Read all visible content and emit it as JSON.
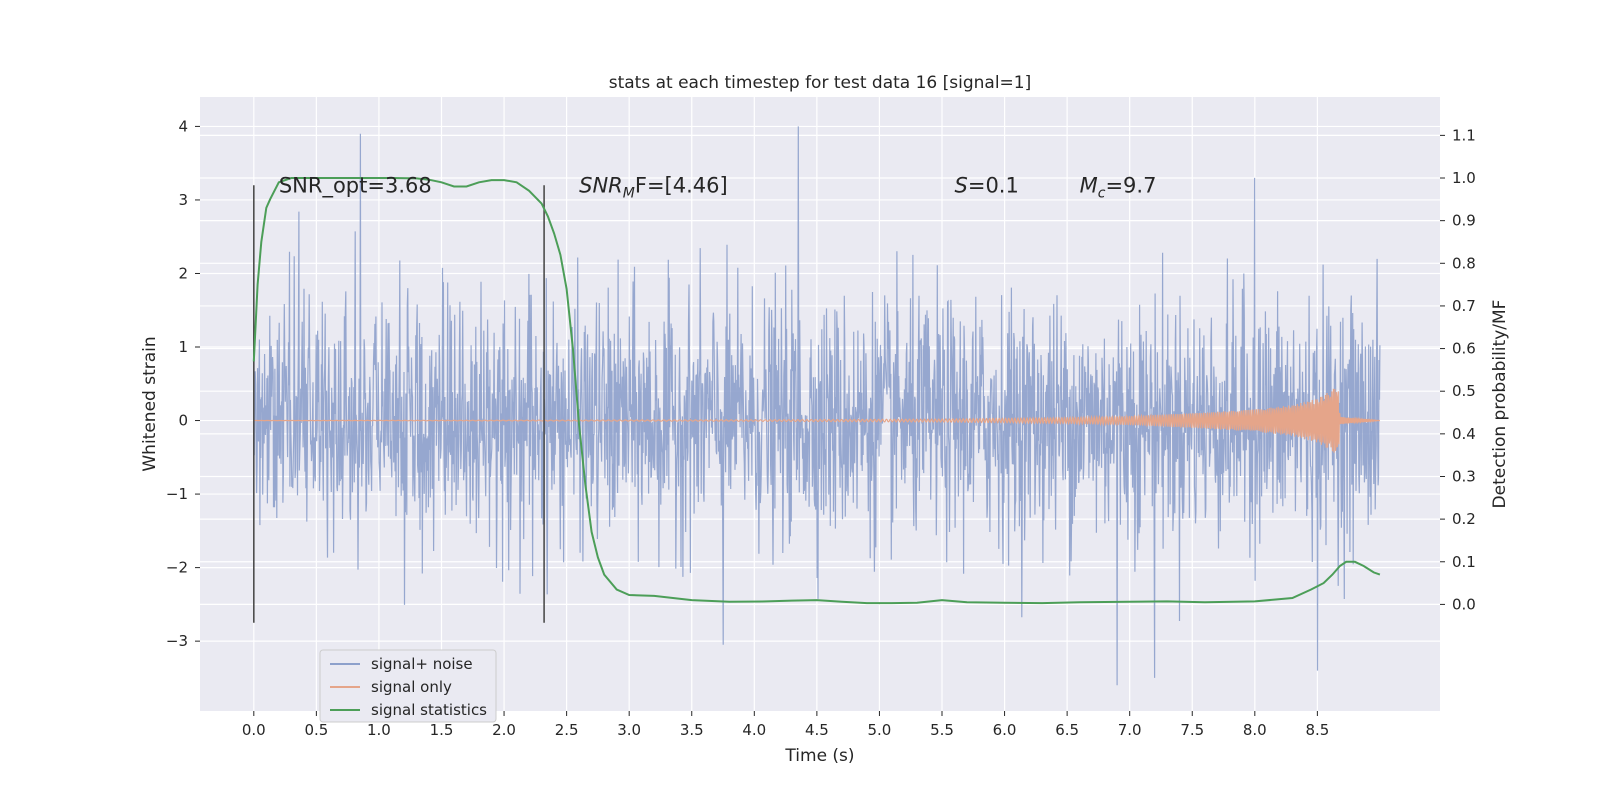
{
  "chart_data": {
    "type": "line",
    "title": "stats at each timestep for test data 16 [signal=1]",
    "xlabel": "Time (s)",
    "ylabel": "Whitened strain",
    "y2label": "Detection probability/MF",
    "xlim": [
      -0.43,
      9.48
    ],
    "ylim": [
      -3.95,
      4.4
    ],
    "y2lim": [
      -0.25,
      1.19
    ],
    "xticks": [
      0.0,
      0.5,
      1.0,
      1.5,
      2.0,
      2.5,
      3.0,
      3.5,
      4.0,
      4.5,
      5.0,
      5.5,
      6.0,
      6.5,
      7.0,
      7.5,
      8.0,
      8.5
    ],
    "xtick_labels": [
      "0.0",
      "0.5",
      "1.0",
      "1.5",
      "2.0",
      "2.5",
      "3.0",
      "3.5",
      "4.0",
      "4.5",
      "5.0",
      "5.5",
      "6.0",
      "6.5",
      "7.0",
      "7.5",
      "8.0",
      "8.5"
    ],
    "yticks": [
      -3,
      -2,
      -1,
      0,
      1,
      2,
      3,
      4
    ],
    "ytick_labels": [
      "−3",
      "−2",
      "−1",
      "0",
      "1",
      "2",
      "3",
      "4"
    ],
    "y2ticks": [
      0.0,
      0.1,
      0.2,
      0.3,
      0.4,
      0.5,
      0.6,
      0.7,
      0.8,
      0.9,
      1.0,
      1.1
    ],
    "y2tick_labels": [
      "0.0",
      "0.1",
      "0.2",
      "0.3",
      "0.4",
      "0.5",
      "0.6",
      "0.7",
      "0.8",
      "0.9",
      "1.0",
      "1.1"
    ],
    "grid": true,
    "legend_position": "lower-left",
    "series": [
      {
        "name": "signal+ noise",
        "color": "#8da0cb",
        "axis": "left",
        "x_range": [
          0.0,
          9.0
        ],
        "typical_amplitude": 1.3,
        "peak_range": [
          -3.5,
          3.95
        ],
        "notable_peaks": [
          {
            "x": 0.85,
            "y": 3.9
          },
          {
            "x": 4.35,
            "y": 4.0
          },
          {
            "x": 8.0,
            "y": 3.3
          },
          {
            "x": 6.9,
            "y": -3.6
          },
          {
            "x": 7.2,
            "y": -3.5
          },
          {
            "x": 8.5,
            "y": -3.4
          },
          {
            "x": 3.75,
            "y": -3.05
          }
        ]
      },
      {
        "name": "signal only",
        "color": "#e5a58a",
        "axis": "left",
        "envelope": [
          [
            0.0,
            0.0
          ],
          [
            4.0,
            0.01
          ],
          [
            5.5,
            0.02
          ],
          [
            6.5,
            0.04
          ],
          [
            7.0,
            0.06
          ],
          [
            7.5,
            0.1
          ],
          [
            8.0,
            0.15
          ],
          [
            8.3,
            0.21
          ],
          [
            8.5,
            0.3
          ],
          [
            8.62,
            0.42
          ],
          [
            8.67,
            0.5
          ],
          [
            8.68,
            0.05
          ],
          [
            9.0,
            0.0
          ]
        ]
      },
      {
        "name": "signal statistics",
        "color": "#4c9e58",
        "axis": "right",
        "x": [
          0.0,
          0.03,
          0.06,
          0.1,
          0.13,
          0.2,
          0.3,
          0.5,
          0.7,
          0.9,
          1.1,
          1.3,
          1.4,
          1.5,
          1.6,
          1.7,
          1.8,
          1.9,
          2.0,
          2.1,
          2.2,
          2.3,
          2.35,
          2.4,
          2.45,
          2.5,
          2.55,
          2.6,
          2.65,
          2.7,
          2.75,
          2.8,
          2.9,
          3.0,
          3.2,
          3.5,
          3.8,
          4.1,
          4.3,
          4.5,
          4.7,
          4.9,
          5.1,
          5.3,
          5.5,
          5.7,
          6.0,
          6.3,
          6.6,
          7.0,
          7.3,
          7.6,
          8.0,
          8.3,
          8.45,
          8.55,
          8.62,
          8.68,
          8.73,
          8.8,
          8.87,
          8.95,
          9.0
        ],
        "y": [
          0.57,
          0.75,
          0.85,
          0.93,
          0.95,
          0.99,
          1.0,
          1.0,
          1.0,
          1.0,
          1.0,
          0.999,
          0.996,
          0.99,
          0.98,
          0.98,
          0.99,
          0.995,
          0.995,
          0.99,
          0.97,
          0.94,
          0.91,
          0.87,
          0.82,
          0.74,
          0.6,
          0.42,
          0.28,
          0.17,
          0.11,
          0.07,
          0.035,
          0.022,
          0.02,
          0.01,
          0.006,
          0.007,
          0.009,
          0.01,
          0.006,
          0.003,
          0.003,
          0.004,
          0.01,
          0.005,
          0.004,
          0.003,
          0.005,
          0.006,
          0.007,
          0.005,
          0.007,
          0.015,
          0.035,
          0.05,
          0.07,
          0.09,
          0.1,
          0.1,
          0.09,
          0.075,
          0.07
        ]
      }
    ],
    "vertical_lines": [
      {
        "x": 0.0,
        "ymin": -2.75,
        "ymax": 3.2,
        "color": "#4d4d4d"
      },
      {
        "x": 2.32,
        "ymin": -2.75,
        "ymax": 3.2,
        "color": "#4d4d4d"
      }
    ],
    "annotations": [
      {
        "x": 0.2,
        "y": 3.1,
        "text": "SNR_opt=3.68"
      },
      {
        "x": 2.6,
        "y": 3.1,
        "math": "SNR",
        "sub": "M",
        "tail": "F=[4.46]"
      },
      {
        "x": 5.6,
        "y": 3.1,
        "math": "S",
        "sub": "",
        "tail": "=0.1"
      },
      {
        "x": 6.6,
        "y": 3.1,
        "math": "M",
        "sub": "c",
        "tail": "=9.7"
      }
    ]
  }
}
